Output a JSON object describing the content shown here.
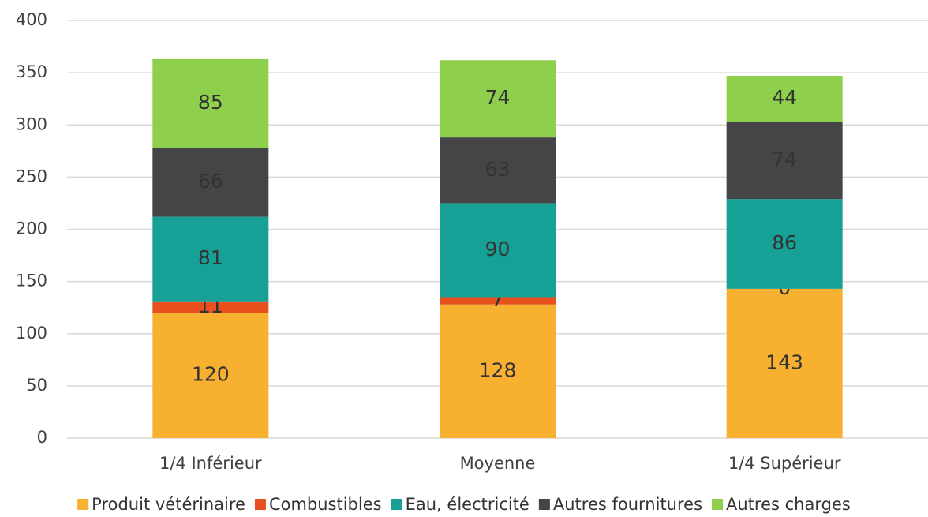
{
  "chart_data": {
    "type": "stacked_bar",
    "categories": [
      "1/4 Inférieur",
      "Moyenne",
      "1/4 Supérieur"
    ],
    "series": [
      {
        "name": "Produit vétérinaire",
        "color": "#f7b030",
        "values": [
          120,
          128,
          143
        ]
      },
      {
        "name": "Combustibles",
        "color": "#e8501e",
        "values": [
          11,
          7,
          0
        ]
      },
      {
        "name": "Eau, électricité",
        "color": "#17a096",
        "values": [
          81,
          90,
          86
        ]
      },
      {
        "name": "Autres fournitures",
        "color": "#454547",
        "values": [
          66,
          63,
          74
        ]
      },
      {
        "name": "Autres charges",
        "color": "#8ecf4b",
        "values": [
          85,
          74,
          44
        ]
      }
    ],
    "ylim": [
      0,
      400
    ],
    "yticks": [
      0,
      50,
      100,
      150,
      200,
      250,
      300,
      350,
      400
    ],
    "grid": true,
    "legend": "bottom"
  }
}
